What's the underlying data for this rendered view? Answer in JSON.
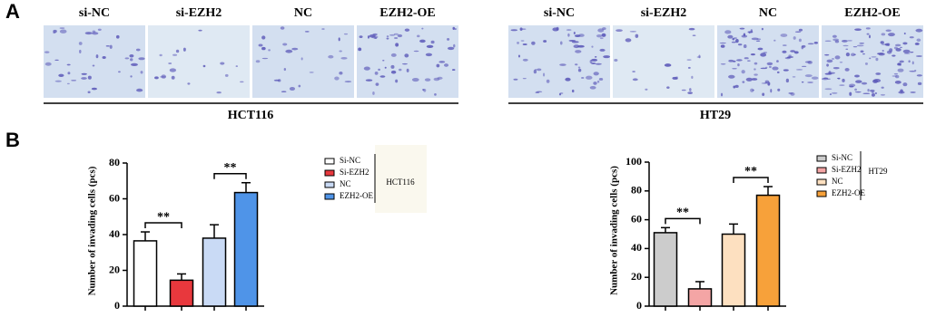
{
  "panels": {
    "a": "A",
    "b": "B"
  },
  "image_groups": [
    {
      "name": "HCT116",
      "images": [
        "si-NC",
        "si-EZH2",
        "NC",
        "EZH2-OE"
      ]
    },
    {
      "name": "HT29",
      "images": [
        "si-NC",
        "si-EZH2",
        "NC",
        "EZH2-OE"
      ]
    }
  ],
  "chart_data": [
    {
      "type": "bar",
      "ylabel": "Number of invading cells (pcs)",
      "categories": [
        "Si-NC",
        "Si-EZH2",
        "NC",
        "EZH2-OE"
      ],
      "colors": [
        "#ffffff",
        "#e8383d",
        "#c9daf5",
        "#4f94e8"
      ],
      "values": [
        36.5,
        14.5,
        38,
        63.5
      ],
      "errors": [
        5,
        3.5,
        7.5,
        5.5
      ],
      "ylim": [
        0,
        80
      ],
      "yticks": [
        0,
        20,
        40,
        60,
        80
      ],
      "legend_title": "HCT116",
      "annotations": [
        "**",
        "**"
      ]
    },
    {
      "type": "bar",
      "ylabel": "Number of invading cells (pcs)",
      "categories": [
        "Si-NC",
        "Si-EZH2",
        "NC",
        "EZH2-OE"
      ],
      "colors": [
        "#cccccc",
        "#f4a5a5",
        "#fde0c0",
        "#f7a13a"
      ],
      "values": [
        51,
        12,
        50,
        77
      ],
      "errors": [
        3.5,
        5,
        7,
        6
      ],
      "ylim": [
        0,
        100
      ],
      "yticks": [
        0,
        20,
        40,
        60,
        80,
        100
      ],
      "legend_title": "HT29",
      "annotations": [
        "**",
        "**"
      ]
    }
  ]
}
